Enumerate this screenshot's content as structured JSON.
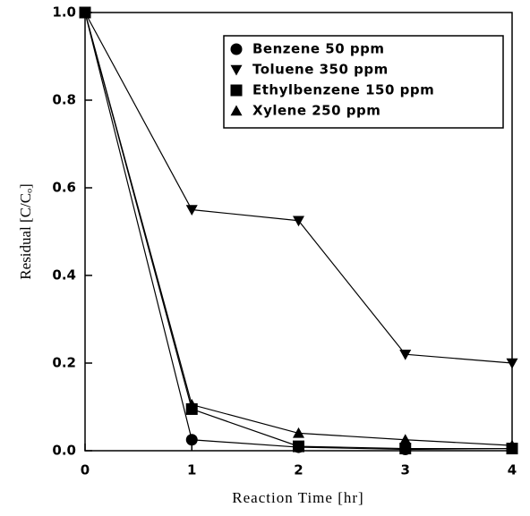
{
  "chart_data": {
    "type": "line",
    "x_label": "Reaction Time [hr]",
    "y_label": "Residual [C/Cₒ]",
    "x": [
      0,
      1,
      2,
      3,
      4
    ],
    "series": [
      {
        "name": "Benzene 50 ppm",
        "color": "#000000",
        "marker": "circle",
        "values": [
          1.0,
          0.025,
          0.008,
          0.003,
          0.005
        ]
      },
      {
        "name": "Toluene 350 ppm",
        "color": "#000000",
        "marker": "triangle-down",
        "values": [
          1.0,
          0.55,
          0.525,
          0.22,
          0.2
        ]
      },
      {
        "name": "Ethylbenzene 150 ppm",
        "color": "#000000",
        "marker": "square",
        "values": [
          1.0,
          0.095,
          0.01,
          0.005,
          0.005
        ]
      },
      {
        "name": "Xylene 250 ppm",
        "color": "#000000",
        "marker": "triangle-up",
        "values": [
          1.0,
          0.105,
          0.04,
          0.025,
          0.012
        ]
      }
    ],
    "xlim": [
      0,
      4
    ],
    "xticks": [
      0,
      1,
      2,
      3,
      4
    ],
    "ylim": [
      0,
      1
    ],
    "yticks": [
      {
        "value": 0,
        "label": "0.0"
      },
      {
        "value": 0.2,
        "label": "0.2"
      },
      {
        "value": 0.4,
        "label": "0.4"
      },
      {
        "value": 0.6,
        "label": "0.6"
      },
      {
        "value": 0.8,
        "label": "0.8"
      },
      {
        "value": 1,
        "label": "1.0"
      }
    ],
    "legend": "upper right"
  }
}
